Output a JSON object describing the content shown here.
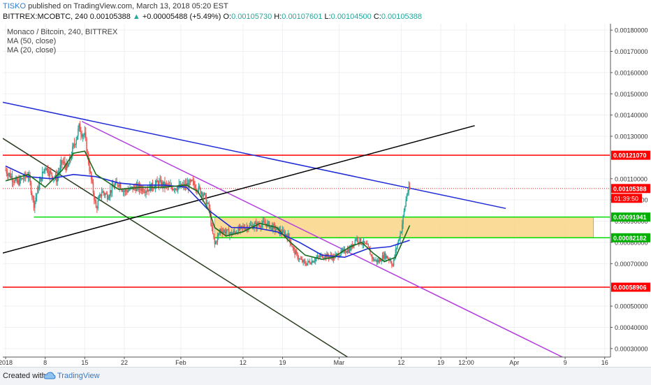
{
  "header": {
    "author": "TISKO",
    "published": "published on TradingView.com, March 13, 2018 05:20 EST",
    "symbol": "BITTREX:MCOBTC, 240",
    "price": "0.00105388",
    "change_arrow": "▲",
    "change": "+0.00005488 (+5.49%)",
    "o_label": "O:",
    "o_value": "0.00105730",
    "h_label": "H:",
    "h_value": "0.00107601",
    "l_label": "L:",
    "l_value": "0.00104500",
    "c_label": "C:",
    "c_value": "0.00105388"
  },
  "legend": {
    "title": "Monaco / Bitcoin, 240, BITTREX",
    "ma1": "MA (50, close)",
    "ma2": "MA (20, close)"
  },
  "footer": {
    "created": "Created with",
    "brand": "TradingView"
  },
  "colors": {
    "up": "#26a69a",
    "down": "#ef5350",
    "ma50": "#1f2bd6",
    "ma20": "#1e6b1e",
    "red_level": "#ff0000",
    "green_level": "#00dd00",
    "zone_fill": "#f9d585",
    "purple_trend": "#b23ee0",
    "blue_trend": "#1f2bd6",
    "black_trend": "#000000",
    "darkgreen_trend": "#2b3d1f"
  },
  "chart_data": {
    "type": "candlestick",
    "price_axis": {
      "range": [
        0.00026,
        0.00183
      ],
      "ticks": [
        "0.00180000",
        "0.00170000",
        "0.00160000",
        "0.00150000",
        "0.00140000",
        "0.00130000",
        "0.00110000",
        "0.00100000",
        "0.00090000",
        "0.00080000",
        "0.00070000",
        "0.00050000",
        "0.00040000",
        "0.00030000"
      ],
      "tick_values": [
        0.0018,
        0.0017,
        0.0016,
        0.0015,
        0.0014,
        0.0013,
        0.0011,
        0.001,
        0.0009,
        0.0008,
        0.0007,
        0.0005,
        0.0004,
        0.0003
      ]
    },
    "time_axis": {
      "labels": [
        "2018",
        "8",
        "15",
        "22",
        "Feb",
        "12",
        "19",
        "Mar",
        "12",
        "19",
        "12:00",
        "Apr",
        "9",
        "16"
      ],
      "label_days": [
        0,
        7,
        14,
        21,
        31,
        42,
        49,
        59,
        70,
        77,
        81.5,
        90,
        99,
        106
      ]
    },
    "price_labels": [
      {
        "value": 0.0012107,
        "text": "0.00121070",
        "color": "#ff0000"
      },
      {
        "value": 0.00105388,
        "text": "0.00105388",
        "color": "#ff0000"
      },
      {
        "value": 0.00091941,
        "text": "0.00091941",
        "color": "#00b000"
      },
      {
        "value": 0.00082182,
        "text": "0.00082182",
        "color": "#00b000"
      },
      {
        "value": 0.00058906,
        "text": "0.00058906",
        "color": "#ff0000"
      }
    ],
    "countdown": "01:39:50",
    "horizontal_levels": [
      {
        "name": "resistance-121",
        "value": 0.0012107,
        "color": "#ff0000"
      },
      {
        "name": "support-589",
        "value": 0.00058906,
        "color": "#ff0000"
      },
      {
        "name": "zone-top",
        "value": 0.00091941,
        "color": "#00dd00",
        "from_day": 5
      },
      {
        "name": "zone-bottom",
        "value": 0.00082182,
        "color": "#00dd00",
        "from_day": 37
      }
    ],
    "zone": {
      "from_day": 37,
      "to_day": 104,
      "top": 0.00091941,
      "bottom": 0.00082182
    },
    "trendlines": [
      {
        "name": "blue-trendline",
        "color": "#1f2bd6",
        "p1": [
          -0.5,
          0.00146
        ],
        "p2": [
          88.5,
          0.00096
        ]
      },
      {
        "name": "purple-trendline",
        "color": "#b23ee0",
        "p1": [
          13.5,
          0.00137
        ],
        "p2": [
          98.5,
          0.00026
        ]
      },
      {
        "name": "black-trendline",
        "color": "#000000",
        "p1": [
          -0.5,
          0.00075
        ],
        "p2": [
          83,
          0.00135
        ]
      },
      {
        "name": "darkgreen-trendline",
        "color": "#2b3d1f",
        "p1": [
          -0.5,
          0.00129
        ],
        "p2": [
          60.5,
          0.00026
        ]
      }
    ],
    "close_series": {
      "days": [
        0,
        2,
        4,
        5,
        6,
        7,
        8,
        9,
        10,
        11,
        12,
        13,
        14,
        15,
        16,
        17,
        18,
        19,
        20,
        21,
        23,
        25,
        27,
        29,
        31,
        33,
        35,
        36,
        36.5,
        37,
        38,
        40,
        42,
        44,
        46,
        48,
        50,
        51,
        52,
        53,
        54,
        56,
        58,
        60,
        61,
        62,
        64,
        65,
        66,
        67,
        68,
        68.5,
        69,
        70,
        71,
        71.5
      ],
      "values": [
        0.00114,
        0.00108,
        0.00112,
        0.00098,
        0.00108,
        0.00116,
        0.00112,
        0.0011,
        0.00118,
        0.00115,
        0.00125,
        0.00134,
        0.0013,
        0.00112,
        0.00096,
        0.00104,
        0.00102,
        0.00106,
        0.00108,
        0.00104,
        0.00106,
        0.00105,
        0.00108,
        0.00106,
        0.00106,
        0.00108,
        0.00103,
        0.00096,
        0.00086,
        0.00079,
        0.00086,
        0.00084,
        0.00087,
        0.00088,
        0.00089,
        0.00086,
        0.00083,
        0.00076,
        0.00072,
        0.0007,
        0.00071,
        0.00074,
        0.00073,
        0.00076,
        0.00077,
        0.00082,
        0.00078,
        0.00072,
        0.00071,
        0.00074,
        0.00072,
        0.00069,
        0.00076,
        0.00086,
        0.00103,
        0.00105388
      ]
    },
    "ma50": {
      "days": [
        0,
        4,
        8,
        12,
        16,
        20,
        24,
        28,
        32,
        36,
        40,
        44,
        48,
        52,
        56,
        60,
        64,
        68,
        71.5
      ],
      "values": [
        0.00116,
        0.00111,
        0.0011,
        0.00112,
        0.00111,
        0.00108,
        0.00107,
        0.00107,
        0.00106,
        0.00095,
        0.00087,
        0.00087,
        0.00085,
        0.0008,
        0.00074,
        0.00073,
        0.00077,
        0.00078,
        0.00081
      ]
    },
    "ma20": {
      "days": [
        0,
        4,
        7,
        10,
        12,
        14,
        16,
        20,
        24,
        28,
        32,
        34,
        36,
        37,
        39,
        42,
        45,
        48,
        50,
        53,
        56,
        58,
        61,
        63,
        65,
        67,
        69,
        70,
        71.5
      ],
      "values": [
        0.00109,
        0.00112,
        0.00106,
        0.00114,
        0.00122,
        0.00123,
        0.00112,
        0.00105,
        0.00106,
        0.00106,
        0.00107,
        0.00104,
        0.00095,
        0.00087,
        0.00083,
        0.00085,
        0.00089,
        0.00087,
        0.00081,
        0.00074,
        0.00072,
        0.00073,
        0.00078,
        0.0008,
        0.00075,
        0.00071,
        0.00073,
        0.00079,
        0.00088
      ]
    },
    "series": [
      {
        "name": "MA (50, close)",
        "color": "#1f2bd6"
      },
      {
        "name": "MA (20, close)",
        "color": "#1e6b1e"
      }
    ]
  }
}
